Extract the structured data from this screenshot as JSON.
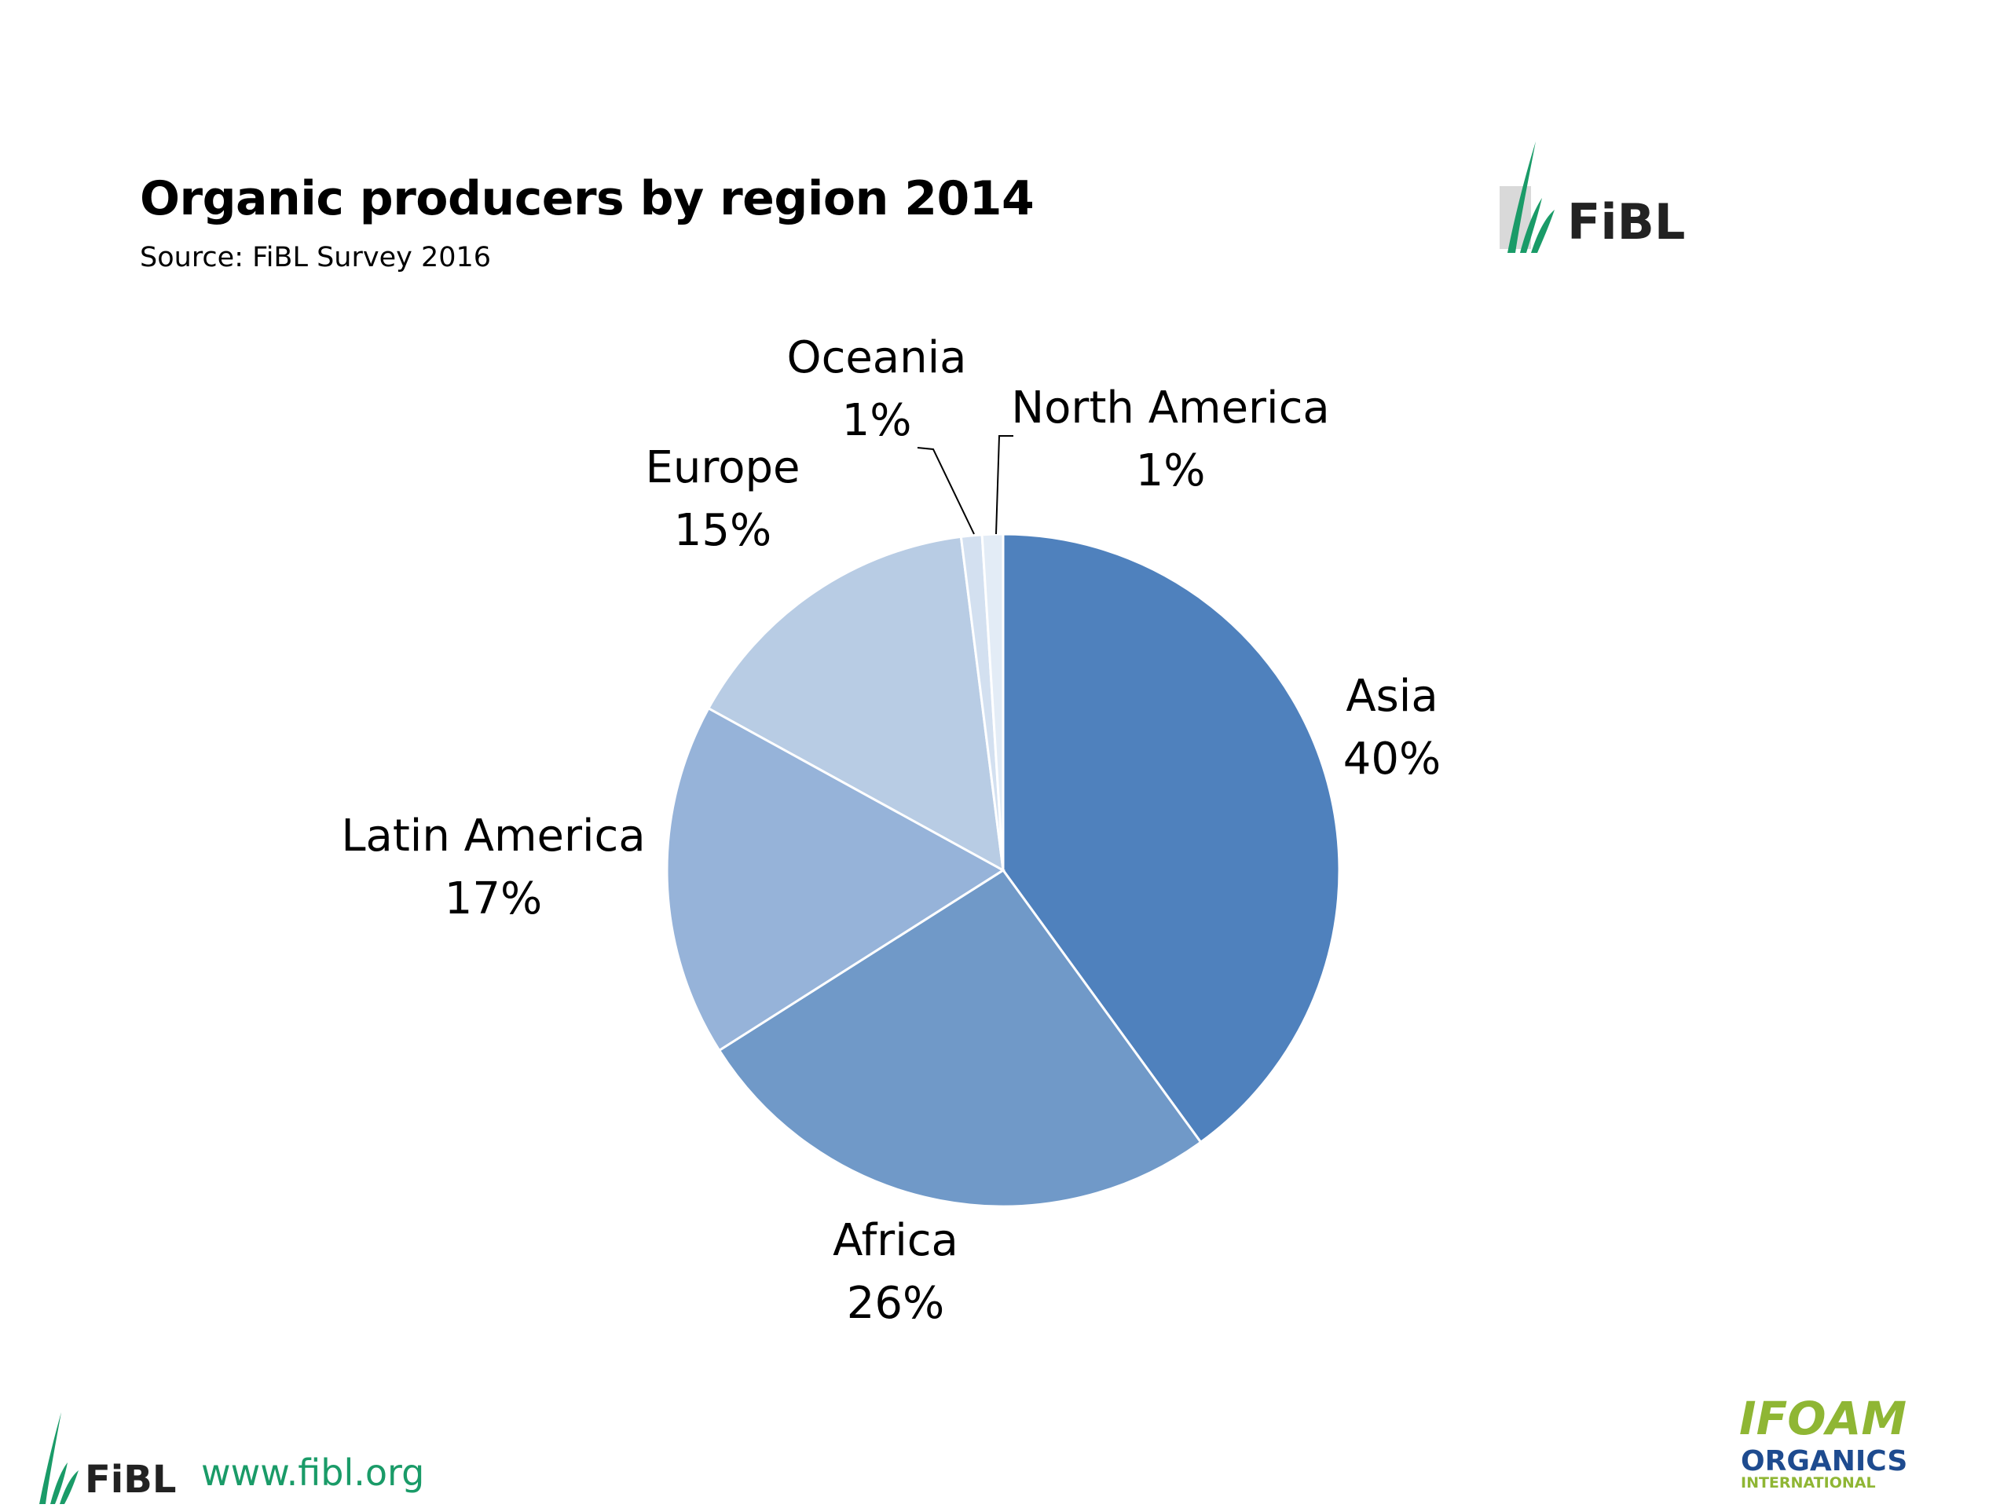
{
  "header": {
    "title": "Organic producers by region 2014",
    "subtitle": "Source: FiBL Survey 2016"
  },
  "logos": {
    "top_right": {
      "text": "FiBL"
    },
    "bottom_left": {
      "text": "FiBL"
    },
    "bottom_right": {
      "line1": "IFOAM",
      "line2": "ORGANICS",
      "line3": "INTERNATIONAL"
    }
  },
  "footer": {
    "url": "www.fibl.org"
  },
  "colors": {
    "asia": "#4f81bd",
    "africa": "#7099c8",
    "latin_america": "#96b3d9",
    "europe": "#b8cce4",
    "oceania": "#d3e0f0",
    "north_america": "#e3ecf6",
    "fibl_green": "#1a9b68",
    "ifoam_green": "#8fb634",
    "ifoam_blue": "#1e4b8f"
  },
  "chart_data": {
    "type": "pie",
    "start_angle_deg": 0,
    "direction": "clockwise",
    "slices": [
      {
        "name": "Asia",
        "value": 40,
        "label": "40%"
      },
      {
        "name": "Africa",
        "value": 26,
        "label": "26%"
      },
      {
        "name": "Latin America",
        "value": 17,
        "label": "17%"
      },
      {
        "name": "Europe",
        "value": 15,
        "label": "15%"
      },
      {
        "name": "Oceania",
        "value": 1,
        "label": "1%"
      },
      {
        "name": "North America",
        "value": 1,
        "label": "1%"
      }
    ]
  }
}
